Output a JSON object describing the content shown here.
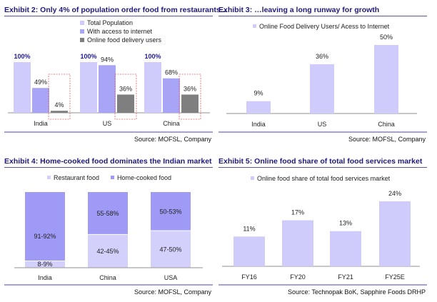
{
  "colors": {
    "title": "#1f1a7a",
    "total_population": "#cfccfb",
    "internet_access": "#a9a5f6",
    "online_users": "#7f7f7f",
    "home_cooked": "#9e9af5",
    "restaurant": "#d3d1fb",
    "highlight_box": "#e06060",
    "axis": "#a6a6a6",
    "bold_label": "#1f1a9a"
  },
  "chart_data": [
    {
      "id": "exhibit2",
      "type": "bar",
      "title": "Exhibit 2: Only 4% of population order food from restaurants...",
      "source": "Source: MOFSL, Company",
      "categories": [
        "India",
        "US",
        "China"
      ],
      "series": [
        {
          "name": "Total Population",
          "values": [
            100,
            100,
            100
          ],
          "labels": [
            "100%",
            "100%",
            "100%"
          ]
        },
        {
          "name": "With access to internet",
          "values": [
            49,
            94,
            68
          ],
          "labels": [
            "49%",
            "94%",
            "68%"
          ]
        },
        {
          "name": "Online food delivery users",
          "values": [
            4,
            36,
            36
          ],
          "labels": [
            "4%",
            "36%",
            "36%"
          ]
        }
      ],
      "highlighted_series": "Online food delivery users",
      "ylim": [
        0,
        100
      ],
      "xlabel": "",
      "ylabel": "",
      "grid": false,
      "legend": "top-center"
    },
    {
      "id": "exhibit3",
      "type": "bar",
      "title": "Exhibit 3:  …leaving a long runway for growth",
      "source": "Source: MOFSL, Company",
      "categories": [
        "India",
        "US",
        "China"
      ],
      "series": [
        {
          "name": "Online Food Delivery Users/ Acess to Internet",
          "values": [
            9,
            36,
            50
          ],
          "labels": [
            "9%",
            "36%",
            "50%"
          ]
        }
      ],
      "ylim": [
        0,
        50
      ],
      "xlabel": "",
      "ylabel": "",
      "grid": false,
      "legend": "top-center"
    },
    {
      "id": "exhibit4",
      "type": "bar",
      "stacked": true,
      "title": "Exhibit 4: Home-cooked food dominates the Indian market",
      "source": "Source: MOFSL, Company",
      "categories": [
        "India",
        "China",
        "USA"
      ],
      "series": [
        {
          "name": "Restaurant food",
          "values": [
            8.5,
            43.5,
            48.5
          ],
          "labels": [
            "8-9%",
            "42-45%",
            "47-50%"
          ]
        },
        {
          "name": "Home-cooked food",
          "values": [
            91.5,
            56.5,
            51.5
          ],
          "labels": [
            "91-92%",
            "55-58%",
            "50-53%"
          ]
        }
      ],
      "ylim": [
        0,
        100
      ],
      "xlabel": "",
      "ylabel": "",
      "grid": false,
      "legend": "top-center"
    },
    {
      "id": "exhibit5",
      "type": "bar",
      "title": "Exhibit 5: Online food share of total food services market",
      "source": "Source: Technopak BoK, Sapphire Foods DRHP",
      "categories": [
        "FY16",
        "FY20",
        "FY21",
        "FY25E"
      ],
      "series": [
        {
          "name": "Online food share of total food services market",
          "values": [
            11,
            17,
            13,
            24
          ],
          "labels": [
            "11%",
            "17%",
            "13%",
            "24%"
          ]
        }
      ],
      "ylim": [
        0,
        24
      ],
      "xlabel": "",
      "ylabel": "",
      "grid": false,
      "legend": "top-center"
    }
  ]
}
